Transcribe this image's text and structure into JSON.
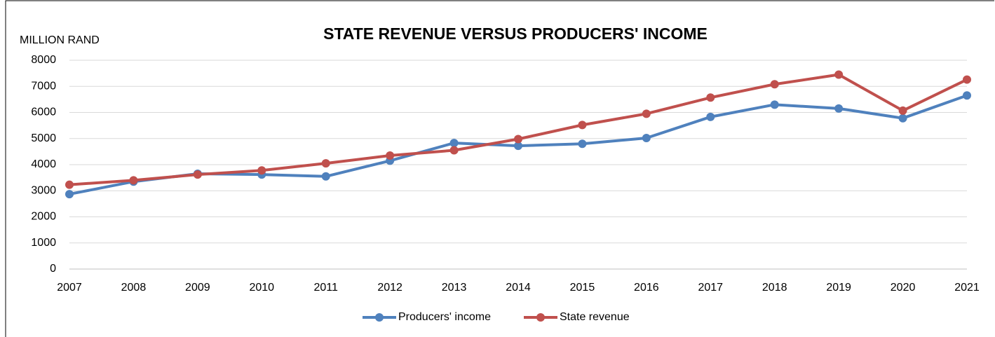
{
  "chart_data": {
    "type": "line",
    "title": "STATE REVENUE VERSUS PRODUCERS' INCOME",
    "y_label": "MILLION RAND",
    "categories": [
      "2007",
      "2008",
      "2009",
      "2010",
      "2011",
      "2012",
      "2013",
      "2014",
      "2015",
      "2016",
      "2017",
      "2018",
      "2019",
      "2020",
      "2021"
    ],
    "series": [
      {
        "name": "Producers' income",
        "color": "#4f81bd",
        "values": [
          2870,
          3350,
          3650,
          3620,
          3550,
          4150,
          4830,
          4720,
          4800,
          5020,
          5830,
          6300,
          6150,
          5780,
          6650
        ]
      },
      {
        "name": "State revenue",
        "color": "#c0504d",
        "values": [
          3230,
          3400,
          3620,
          3780,
          4050,
          4350,
          4550,
          4980,
          5520,
          5950,
          6570,
          7080,
          7450,
          6070,
          7260
        ]
      }
    ],
    "ylim": [
      0,
      8000
    ],
    "yticks": [
      0,
      1000,
      2000,
      3000,
      4000,
      5000,
      6000,
      7000,
      8000
    ],
    "grid": true,
    "legend": "bottom"
  }
}
